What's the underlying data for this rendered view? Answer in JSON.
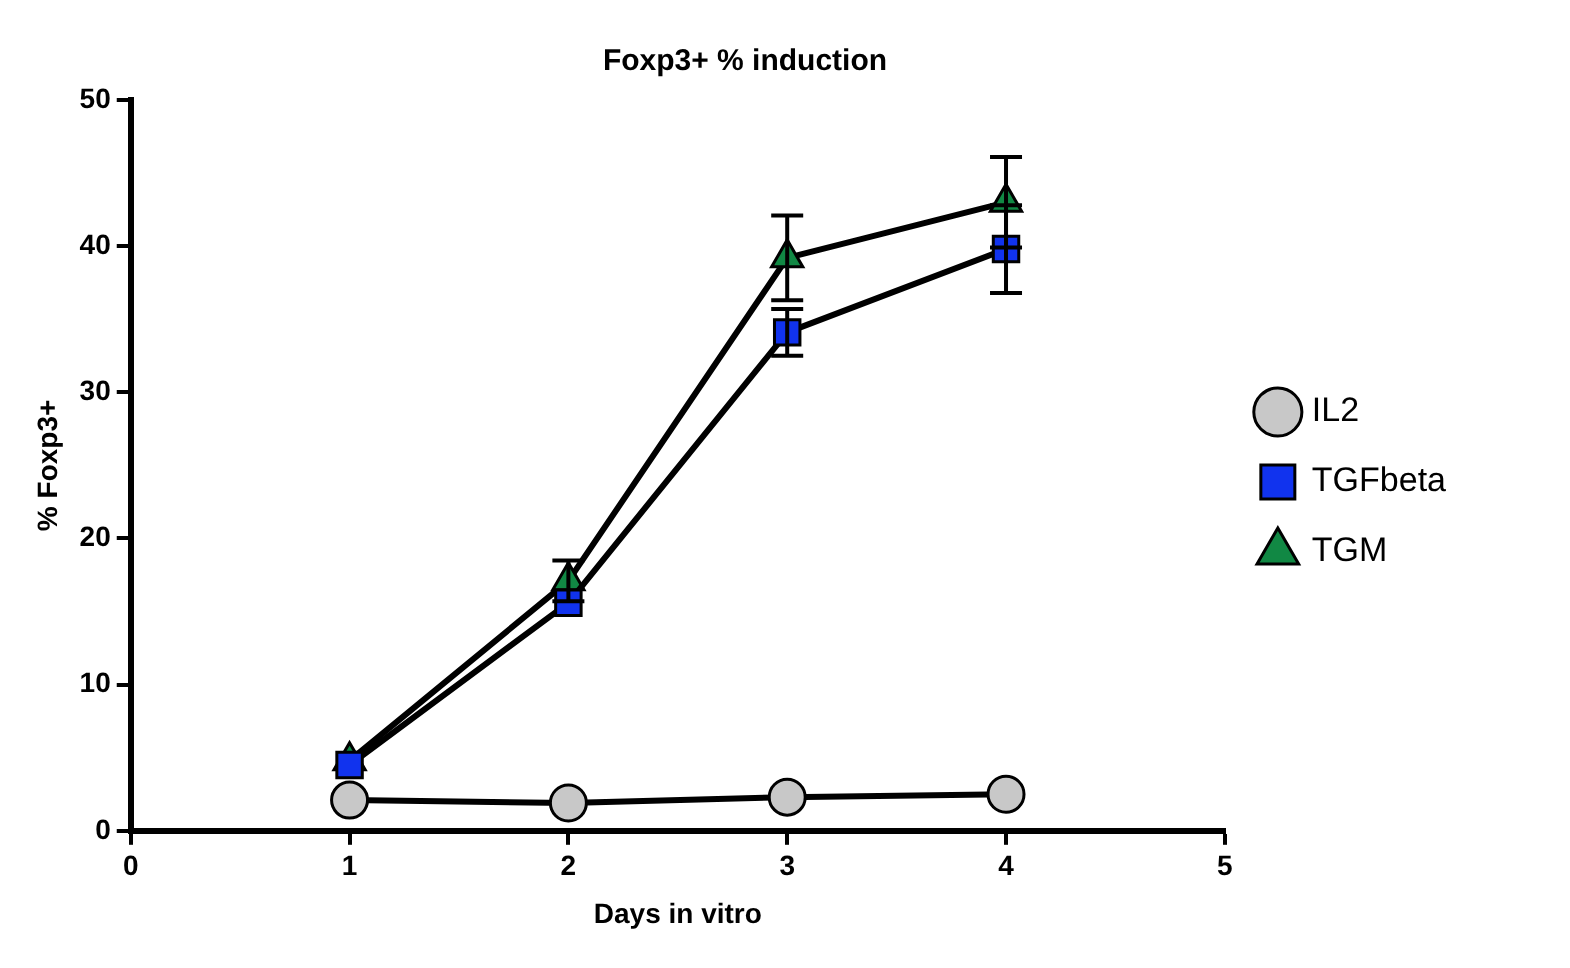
{
  "chart_data": {
    "type": "line",
    "title": "Foxp3+ % induction",
    "xlabel": "Days in vitro",
    "ylabel": "% Foxp3+",
    "x": [
      1,
      2,
      3,
      4
    ],
    "xlim": [
      0,
      5
    ],
    "xticks": [
      0,
      1,
      2,
      3,
      4,
      5
    ],
    "ylim": [
      0,
      50
    ],
    "yticks": [
      0,
      10,
      20,
      30,
      40,
      50
    ],
    "grid": false,
    "legend": "right",
    "line_style": "solid",
    "series": [
      {
        "name": "IL2",
        "color": "#c8c8c8",
        "marker": "circle",
        "values": [
          2.1,
          1.9,
          2.3,
          2.5
        ]
      },
      {
        "name": "TGFbeta",
        "color": "#1133ee",
        "marker": "square",
        "values": [
          4.5,
          15.6,
          34.1,
          39.8
        ],
        "errors": [
          null,
          null,
          1.6,
          3
        ]
      },
      {
        "name": "TGM",
        "color": "#118844",
        "marker": "triangle",
        "values": [
          4.8,
          17.1,
          39.2,
          43
        ],
        "errors": [
          null,
          1.4,
          2.9,
          3.1
        ]
      }
    ]
  }
}
